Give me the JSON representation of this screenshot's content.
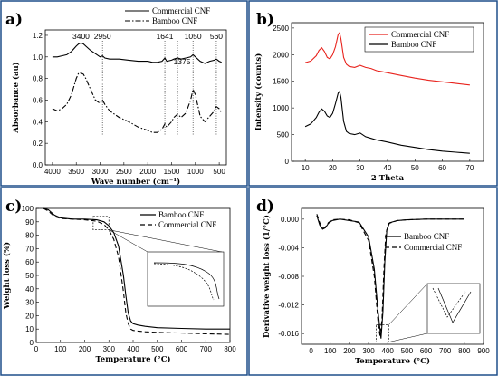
{
  "chart_data": [
    {
      "type": "line",
      "panel": "a)",
      "xlabel": "Wave number (cm⁻¹)",
      "ylabel": "Absorbance (au)",
      "xlim": [
        4150,
        350
      ],
      "ylim": [
        0.0,
        1.25
      ],
      "xticks": [
        4000,
        3500,
        3000,
        2500,
        2000,
        1500,
        1000,
        500
      ],
      "yticks": [
        0.0,
        0.2,
        0.4,
        0.6,
        0.8,
        1.0,
        1.2
      ],
      "legend_position": "top-right",
      "peaks": [
        {
          "label": "3400",
          "x": 3400
        },
        {
          "label": "2950",
          "x": 2950
        },
        {
          "label": "1641",
          "x": 1641
        },
        {
          "label": "1375",
          "x": 1375
        },
        {
          "label": "1050",
          "x": 1050
        },
        {
          "label": "560",
          "x": 560
        }
      ],
      "series": [
        {
          "name": "Commercial CNF",
          "style": "solid",
          "color": "#000000",
          "x": [
            4000,
            3900,
            3800,
            3700,
            3600,
            3500,
            3450,
            3400,
            3350,
            3300,
            3200,
            3100,
            3000,
            2950,
            2900,
            2800,
            2600,
            2400,
            2200,
            2000,
            1900,
            1800,
            1700,
            1641,
            1600,
            1500,
            1450,
            1375,
            1300,
            1200,
            1100,
            1050,
            1000,
            900,
            800,
            700,
            600,
            560,
            500,
            450
          ],
          "y": [
            1.0,
            1.0,
            1.01,
            1.02,
            1.05,
            1.1,
            1.12,
            1.13,
            1.12,
            1.1,
            1.06,
            1.03,
            1.0,
            1.01,
            0.99,
            0.98,
            0.98,
            0.97,
            0.96,
            0.96,
            0.95,
            0.95,
            0.96,
            0.99,
            0.96,
            0.97,
            0.98,
            0.99,
            0.98,
            0.99,
            1.0,
            1.02,
            1.0,
            0.96,
            0.94,
            0.96,
            0.97,
            0.98,
            0.96,
            0.95
          ]
        },
        {
          "name": "Bamboo CNF",
          "style": "dashdot",
          "color": "#000000",
          "x": [
            4000,
            3900,
            3800,
            3700,
            3600,
            3500,
            3450,
            3400,
            3350,
            3300,
            3200,
            3100,
            3000,
            2950,
            2900,
            2800,
            2600,
            2400,
            2200,
            2000,
            1900,
            1800,
            1700,
            1641,
            1600,
            1500,
            1450,
            1375,
            1300,
            1200,
            1100,
            1050,
            1000,
            900,
            800,
            700,
            600,
            560,
            500,
            450
          ],
          "y": [
            0.52,
            0.5,
            0.52,
            0.56,
            0.65,
            0.8,
            0.85,
            0.85,
            0.84,
            0.8,
            0.7,
            0.6,
            0.57,
            0.6,
            0.56,
            0.5,
            0.44,
            0.4,
            0.35,
            0.32,
            0.3,
            0.3,
            0.33,
            0.38,
            0.35,
            0.4,
            0.44,
            0.47,
            0.44,
            0.48,
            0.6,
            0.7,
            0.65,
            0.45,
            0.4,
            0.45,
            0.5,
            0.54,
            0.52,
            0.48
          ]
        }
      ]
    },
    {
      "type": "line",
      "panel": "b)",
      "xlabel": "2 Theta",
      "ylabel": "Intensity (counts)",
      "xlim": [
        5,
        75
      ],
      "ylim": [
        0,
        2600
      ],
      "xticks": [
        10,
        20,
        30,
        40,
        50,
        60,
        70
      ],
      "yticks": [
        0,
        500,
        1000,
        1500,
        2000,
        2500
      ],
      "legend_position": "top-right",
      "series": [
        {
          "name": "Commercial CNF",
          "color": "#e8221c",
          "x": [
            10,
            12,
            14,
            15,
            16,
            17,
            18,
            19,
            20,
            21,
            22,
            22.5,
            23,
            24,
            25,
            26,
            28,
            30,
            32,
            34,
            36,
            38,
            40,
            45,
            50,
            55,
            60,
            65,
            70
          ],
          "y": [
            1850,
            1880,
            1980,
            2080,
            2130,
            2060,
            1950,
            1920,
            2000,
            2150,
            2380,
            2410,
            2300,
            1950,
            1820,
            1780,
            1760,
            1800,
            1760,
            1740,
            1700,
            1680,
            1660,
            1610,
            1560,
            1520,
            1490,
            1460,
            1430
          ]
        },
        {
          "name": "Bamboo CNF",
          "color": "#000000",
          "x": [
            10,
            12,
            14,
            15,
            16,
            17,
            18,
            19,
            20,
            21,
            22,
            22.5,
            23,
            24,
            25,
            26,
            28,
            30,
            32,
            34,
            36,
            38,
            40,
            45,
            50,
            55,
            60,
            65,
            70
          ],
          "y": [
            650,
            700,
            820,
            920,
            980,
            940,
            850,
            820,
            900,
            1080,
            1280,
            1310,
            1200,
            750,
            560,
            520,
            500,
            530,
            460,
            430,
            400,
            380,
            360,
            300,
            260,
            220,
            190,
            170,
            150
          ]
        }
      ]
    },
    {
      "type": "line",
      "panel": "c)",
      "xlabel": "Temperature (°C)",
      "ylabel": "Weight loss (%)",
      "xlim": [
        0,
        800
      ],
      "ylim": [
        0,
        100
      ],
      "xticks": [
        0,
        100,
        200,
        300,
        400,
        500,
        600,
        700,
        800
      ],
      "yticks": [
        0,
        10,
        20,
        30,
        40,
        50,
        60,
        70,
        80,
        90,
        100
      ],
      "legend_position": "top-right",
      "series": [
        {
          "name": "Bamboo CNF",
          "style": "solid",
          "color": "#000000",
          "x": [
            30,
            50,
            75,
            100,
            150,
            200,
            250,
            280,
            300,
            320,
            340,
            360,
            370,
            380,
            390,
            400,
            420,
            450,
            500,
            600,
            700,
            800
          ],
          "y": [
            100,
            99,
            95,
            93,
            92,
            92,
            91.5,
            90,
            87,
            82,
            72,
            50,
            35,
            22,
            16,
            14,
            13,
            12,
            11,
            10.5,
            10,
            10
          ]
        },
        {
          "name": "Commercial CNF",
          "style": "dashed",
          "color": "#000000",
          "x": [
            30,
            50,
            75,
            100,
            150,
            200,
            250,
            280,
            300,
            320,
            340,
            360,
            370,
            380,
            390,
            400,
            420,
            450,
            500,
            600,
            700,
            800
          ],
          "y": [
            100,
            98,
            94,
            92.5,
            92,
            91.5,
            90.5,
            88,
            84,
            77,
            64,
            38,
            22,
            14,
            10,
            9,
            8.5,
            8,
            7.5,
            7,
            6.5,
            6
          ]
        }
      ]
    },
    {
      "type": "line",
      "panel": "d)",
      "xlabel": "Temperature (°C)",
      "ylabel": "Derivative weight loss (1/°C)",
      "xlim": [
        -50,
        900
      ],
      "ylim": [
        -0.0175,
        0.0015
      ],
      "xticks": [
        0,
        100,
        200,
        300,
        400,
        500,
        600,
        700,
        800,
        900
      ],
      "yticks": [
        0.0,
        -0.004,
        -0.008,
        -0.012,
        -0.016
      ],
      "ytick_labels": [
        "0.000",
        "-0.004",
        "-0.008",
        "-0.012",
        "-0.016"
      ],
      "legend_position": "center-right",
      "series": [
        {
          "name": "Bamboo CNF",
          "style": "solid",
          "color": "#000000",
          "x": [
            30,
            45,
            60,
            75,
            90,
            110,
            150,
            200,
            250,
            300,
            330,
            350,
            365,
            375,
            385,
            395,
            410,
            450,
            500,
            600,
            700,
            800
          ],
          "y": [
            0.0005,
            -0.0008,
            -0.0014,
            -0.0012,
            -0.0006,
            -0.0002,
            0.0,
            -0.0002,
            -0.0004,
            -0.0025,
            -0.007,
            -0.013,
            -0.0167,
            -0.013,
            -0.006,
            -0.0015,
            -0.0005,
            -0.0002,
            -0.0001,
            0.0,
            0.0,
            0.0
          ]
        },
        {
          "name": "Commercial CNF",
          "style": "dashed",
          "color": "#000000",
          "x": [
            30,
            45,
            60,
            75,
            90,
            110,
            150,
            200,
            250,
            300,
            330,
            350,
            360,
            370,
            380,
            390,
            405,
            450,
            500,
            600,
            700,
            800
          ],
          "y": [
            0.0007,
            -0.0005,
            -0.0012,
            -0.0011,
            -0.0005,
            -0.0001,
            0.0,
            -0.0001,
            -0.0005,
            -0.003,
            -0.008,
            -0.0145,
            -0.0163,
            -0.014,
            -0.007,
            -0.002,
            -0.0006,
            -0.0002,
            -0.0001,
            0.0,
            0.0,
            0.0
          ]
        }
      ]
    }
  ]
}
